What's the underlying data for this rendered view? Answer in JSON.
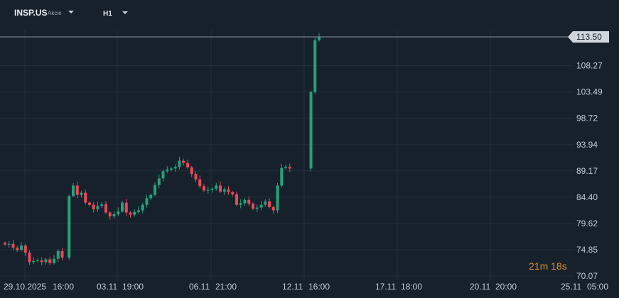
{
  "header": {
    "symbol": "INSP.US",
    "instrument_type": "Akcie",
    "timeframe": "H1"
  },
  "price_tag": "113.50",
  "countdown": {
    "minutes": "21",
    "minutes_unit": "m",
    "seconds": "18",
    "seconds_unit": "s"
  },
  "colors": {
    "background": "#17212b",
    "up": "#26a17b",
    "down": "#e8485b",
    "grid": "#222e39"
  },
  "chart_data": {
    "type": "candlestick",
    "y_ticks": [
      "113.50",
      "108.27",
      "103.49",
      "98.72",
      "93.94",
      "89.17",
      "84.40",
      "79.62",
      "74.85",
      "70.07"
    ],
    "x_ticks": [
      "29.10.2025",
      "16:00",
      "03.11",
      "19:00",
      "06.11",
      "21:00",
      "12.11",
      "16:00",
      "17.11",
      "18:00",
      "20.11",
      "20:00",
      "25.11",
      "05:00"
    ],
    "ylim": [
      70.07,
      113.5
    ],
    "current_price": 113.5,
    "close_path": [
      75.8,
      75.9,
      75.2,
      74.8,
      75.6,
      74.3,
      72.6,
      72.8,
      72.9,
      72.6,
      73.1,
      72.4,
      73.2,
      74.6,
      73.4,
      84.6,
      86.5,
      84.8,
      85.2,
      83.4,
      83.0,
      82.2,
      82.8,
      83.1,
      81.6,
      80.9,
      81.3,
      81.8,
      83.4,
      81.6,
      81.2,
      81.7,
      82.0,
      83.0,
      84.2,
      84.8,
      86.6,
      87.8,
      89.1,
      89.4,
      89.6,
      89.9,
      91.0,
      90.6,
      89.8,
      88.6,
      87.6,
      86.4,
      85.6,
      85.7,
      85.9,
      86.5,
      85.4,
      85.8,
      85.3,
      84.9,
      83.0,
      83.3,
      83.9,
      83.2,
      82.3,
      82.5,
      83.0,
      83.6,
      82.6,
      82.0,
      86.5,
      89.7,
      89.9,
      89.6,
      103.5,
      112.9,
      113.5
    ],
    "grid": true,
    "series": [
      {
        "direction": "up"
      },
      {
        "direction": "down"
      }
    ]
  }
}
